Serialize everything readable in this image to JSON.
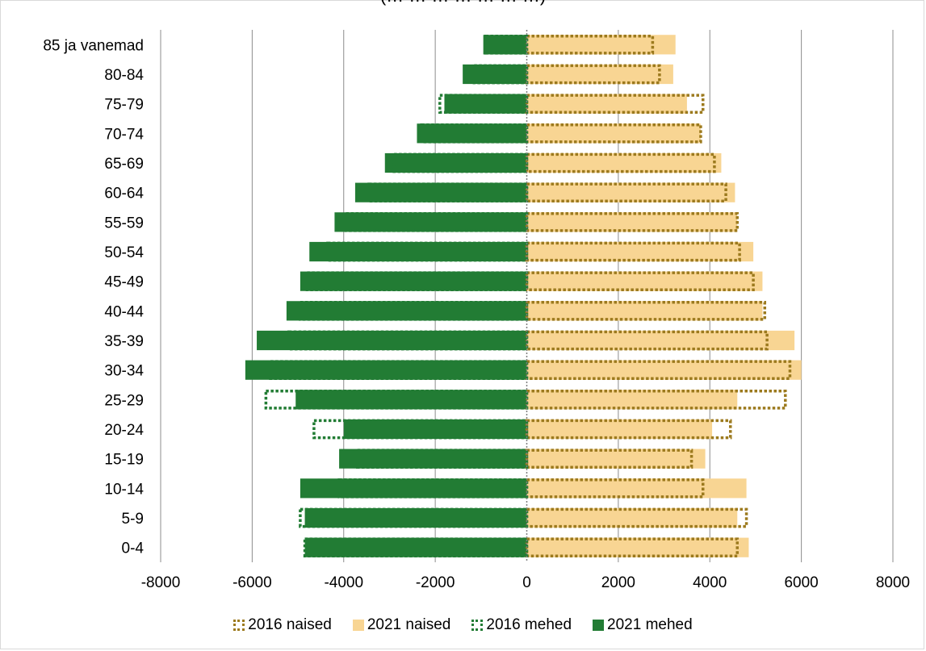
{
  "colors": {
    "women_2021": "#f8d593",
    "women_2016": "#9c7a1e",
    "men_2021": "#227c34",
    "men_2016": "#227c34",
    "grid": "#8c8c8c"
  },
  "chart_data": {
    "type": "bar",
    "orientation": "horizontal",
    "title": "(… … … … … … …)",
    "categories": [
      "0-4",
      "5-9",
      "10-14",
      "15-19",
      "20-24",
      "25-29",
      "30-34",
      "35-39",
      "40-44",
      "45-49",
      "50-54",
      "55-59",
      "60-64",
      "65-69",
      "70-74",
      "75-79",
      "80-84",
      "85 ja vanemad"
    ],
    "xlim": [
      -8000,
      8000
    ],
    "xticks": [
      "-8000",
      "-6000",
      "-4000",
      "-2000",
      "0",
      "2000",
      "4000",
      "6000",
      "8000"
    ],
    "xtick_values": [
      -8000,
      -6000,
      -4000,
      -2000,
      0,
      2000,
      4000,
      6000,
      8000
    ],
    "grid": true,
    "legend_position": "bottom",
    "series": [
      {
        "name": "2016 naised",
        "style": "dotted-outline",
        "values": [
          4600,
          4800,
          3850,
          3600,
          4450,
          5650,
          5750,
          5250,
          5200,
          4950,
          4650,
          4600,
          4350,
          4100,
          3800,
          3850,
          2900,
          2750
        ]
      },
      {
        "name": "2021 naised",
        "style": "filled",
        "values": [
          4850,
          4600,
          4800,
          3900,
          4050,
          4600,
          6000,
          5850,
          5150,
          5150,
          4950,
          4600,
          4550,
          4250,
          3800,
          3500,
          3200,
          3250
        ]
      },
      {
        "name": "2016 mehed",
        "style": "dotted-outline",
        "values": [
          -4850,
          -4950,
          -4100,
          -3700,
          -4650,
          -5700,
          -5600,
          -5200,
          -4950,
          -4800,
          -4350,
          -3950,
          -3450,
          -2900,
          -2300,
          -1900,
          -1150,
          -900
        ]
      },
      {
        "name": "2021 mehed",
        "style": "filled",
        "values": [
          -4850,
          -4850,
          -4950,
          -4100,
          -4000,
          -5050,
          -6150,
          -5900,
          -5250,
          -4950,
          -4750,
          -4200,
          -3750,
          -3100,
          -2400,
          -1800,
          -1400,
          -950
        ]
      }
    ]
  },
  "legend": {
    "item1": "2016 naised",
    "item2": "2021 naised",
    "item3": "2016 mehed",
    "item4": "2021 mehed"
  }
}
